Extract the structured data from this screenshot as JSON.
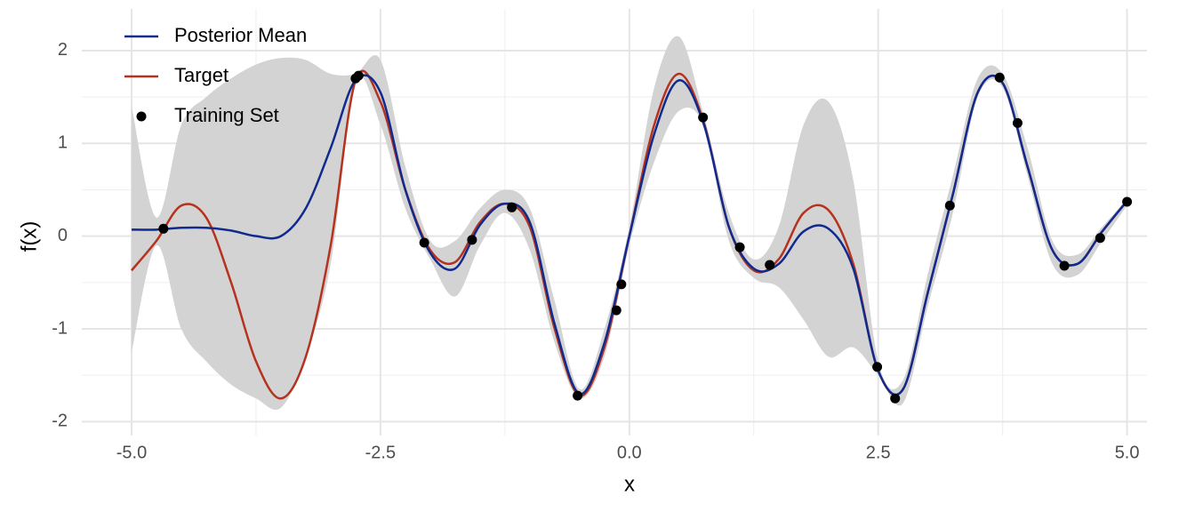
{
  "chart_data": {
    "type": "line",
    "xlabel": "x",
    "ylabel": "f(x)",
    "xlim": [
      -5.5,
      5.2
    ],
    "ylim": [
      -2.15,
      2.45
    ],
    "xticks": [
      {
        "value": -5,
        "label": "-5.0"
      },
      -2.5,
      {
        "value": 0,
        "label": "0.0"
      },
      2.5,
      {
        "value": 5,
        "label": "5.0"
      }
    ],
    "yticks": [
      -2,
      -1,
      0,
      1,
      2
    ],
    "xminorticks": [
      -3.75,
      -1.25,
      1.25,
      3.75
    ],
    "yminorticks": [
      -1.5,
      -0.5,
      0.5,
      1.5
    ],
    "grid": true,
    "legend": "top-left",
    "x": [
      -5,
      -4.75,
      -4.5,
      -4.25,
      -4,
      -3.75,
      -3.5,
      -3.25,
      -3,
      -2.75,
      -2.5,
      -2.25,
      -2,
      -1.75,
      -1.5,
      -1.25,
      -1,
      -0.75,
      -0.5,
      -0.25,
      0,
      0.25,
      0.5,
      0.75,
      1,
      1.25,
      1.5,
      1.75,
      2,
      2.25,
      2.5,
      2.75,
      3,
      3.25,
      3.5,
      3.75,
      4,
      4.25,
      4.5,
      4.75,
      5
    ],
    "band": {
      "color": "#d3d3d3",
      "lower": [
        -1.25,
        -0.1,
        -1.0,
        -1.35,
        -1.6,
        -1.75,
        -1.85,
        -1.3,
        -0.3,
        1.65,
        1.2,
        0.3,
        -0.25,
        -0.65,
        -0.1,
        0.25,
        -0.15,
        -1.15,
        -1.75,
        -1.3,
        -0.1,
        0.8,
        1.35,
        1.18,
        -0.05,
        -0.45,
        -0.55,
        -0.9,
        -1.3,
        -1.2,
        -1.5,
        -1.8,
        -0.75,
        0.25,
        1.5,
        1.6,
        0.65,
        -0.3,
        -0.42,
        -0.05,
        0.33
      ],
      "upper": [
        1.4,
        0.2,
        1.2,
        1.5,
        1.7,
        1.85,
        1.92,
        1.9,
        1.75,
        1.75,
        1.9,
        0.75,
        -0.05,
        -0.05,
        0.3,
        0.5,
        0.3,
        -0.7,
        -1.65,
        -1.0,
        0.1,
        1.6,
        2.15,
        1.3,
        0.25,
        -0.25,
        0.1,
        1.2,
        1.45,
        0.6,
        -1.35,
        -1.55,
        -0.4,
        0.65,
        1.7,
        1.75,
        0.95,
        -0.05,
        -0.2,
        0.1,
        0.4
      ]
    },
    "series": [
      {
        "name": "Posterior Mean",
        "color": "#102a8e",
        "values": [
          0.07,
          0.07,
          0.09,
          0.09,
          0.06,
          0.0,
          0.0,
          0.3,
          0.95,
          1.68,
          1.55,
          0.5,
          -0.18,
          -0.35,
          0.12,
          0.35,
          0.15,
          -0.95,
          -1.7,
          -1.15,
          0.0,
          1.1,
          1.68,
          1.2,
          0.1,
          -0.35,
          -0.3,
          0.05,
          0.08,
          -0.35,
          -1.45,
          -1.65,
          -0.6,
          0.45,
          1.55,
          1.65,
          0.75,
          -0.15,
          -0.3,
          0.05,
          0.38
        ]
      },
      {
        "name": "Target",
        "color": "#b5321e",
        "values": [
          -0.37,
          -0.05,
          0.33,
          0.2,
          -0.5,
          -1.35,
          -1.75,
          -1.3,
          -0.1,
          1.68,
          1.45,
          0.5,
          -0.15,
          -0.28,
          0.15,
          0.35,
          0.1,
          -1.0,
          -1.72,
          -1.2,
          0.0,
          1.2,
          1.75,
          1.22,
          0.1,
          -0.37,
          -0.25,
          0.25,
          0.28,
          -0.3,
          -1.45,
          -1.65,
          -0.6,
          0.45,
          1.55,
          1.65,
          0.75,
          -0.15,
          -0.3,
          0.05,
          0.38
        ]
      }
    ],
    "points": {
      "name": "Training Set",
      "color": "#000000",
      "x": [
        -4.68,
        -2.75,
        -2.72,
        -2.06,
        -1.58,
        -1.18,
        -0.52,
        -0.13,
        -0.08,
        0.74,
        1.11,
        1.41,
        2.49,
        2.67,
        3.22,
        3.72,
        3.9,
        4.37,
        4.73,
        5.0
      ],
      "y": [
        0.08,
        1.7,
        1.73,
        -0.07,
        -0.04,
        0.31,
        -1.72,
        -0.8,
        -0.52,
        1.28,
        -0.12,
        -0.31,
        -1.41,
        -1.75,
        0.33,
        1.71,
        1.22,
        -0.32,
        -0.02,
        0.37
      ]
    }
  }
}
